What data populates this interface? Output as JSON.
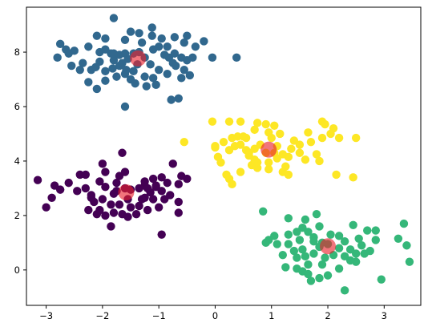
{
  "chart_data": {
    "type": "scatter",
    "title": "",
    "xlabel": "",
    "ylabel": "",
    "xlim": [
      -3.35,
      3.65
    ],
    "ylim": [
      -1.3,
      9.65
    ],
    "xticks": [
      -3,
      -2,
      -1,
      0,
      1,
      2,
      3
    ],
    "yticks": [
      0,
      2,
      4,
      6,
      8
    ],
    "xtick_labels": [
      "−3",
      "−2",
      "−1",
      "0",
      "1",
      "2",
      "3"
    ],
    "ytick_labels": [
      "0",
      "2",
      "4",
      "6",
      "8"
    ],
    "grid": false,
    "legend": "none",
    "series": [
      {
        "color": "#31688e",
        "points": [
          [
            -1.8,
            9.25
          ],
          [
            -1.12,
            8.9
          ],
          [
            -1.5,
            8.75
          ],
          [
            -1.35,
            8.7
          ],
          [
            -1.6,
            8.45
          ],
          [
            -2.1,
            8.6
          ],
          [
            -1.95,
            8.5
          ],
          [
            -2.25,
            8.2
          ],
          [
            -2.5,
            8.05
          ],
          [
            -2.75,
            8.3
          ],
          [
            -2.8,
            7.8
          ],
          [
            -2.65,
            8.1
          ],
          [
            -2.55,
            7.5
          ],
          [
            -2.35,
            7.6
          ],
          [
            -2.2,
            7.35
          ],
          [
            -2.05,
            7.65
          ],
          [
            -1.95,
            7.3
          ],
          [
            -2.05,
            8.0
          ],
          [
            -1.85,
            7.95
          ],
          [
            -1.8,
            7.7
          ],
          [
            -1.7,
            7.5
          ],
          [
            -1.6,
            7.2
          ],
          [
            -1.45,
            7.3
          ],
          [
            -1.5,
            7.0
          ],
          [
            -1.42,
            6.85
          ],
          [
            -1.25,
            7.1
          ],
          [
            -1.1,
            7.05
          ],
          [
            -1.05,
            6.8
          ],
          [
            -1.22,
            6.75
          ],
          [
            -1.38,
            7.55
          ],
          [
            -1.25,
            7.8
          ],
          [
            -1.15,
            7.55
          ],
          [
            -1.0,
            7.35
          ],
          [
            -0.85,
            7.2
          ],
          [
            -0.7,
            7.5
          ],
          [
            -0.55,
            7.35
          ],
          [
            -0.45,
            7.15
          ],
          [
            -0.6,
            7.8
          ],
          [
            -0.75,
            7.6
          ],
          [
            -0.9,
            7.9
          ],
          [
            -0.85,
            8.2
          ],
          [
            -0.95,
            8.5
          ],
          [
            -0.72,
            8.55
          ],
          [
            -0.55,
            8.35
          ],
          [
            -0.35,
            8.2
          ],
          [
            -0.2,
            8.4
          ],
          [
            -0.05,
            7.8
          ],
          [
            0.38,
            7.8
          ],
          [
            -0.4,
            7.8
          ],
          [
            -0.6,
            7.05
          ],
          [
            -1.6,
            7.95
          ],
          [
            -1.45,
            7.95
          ],
          [
            -1.3,
            8.35
          ],
          [
            -1.1,
            8.1
          ],
          [
            -1.0,
            8.2
          ],
          [
            -2.4,
            7.35
          ],
          [
            -2.25,
            6.9
          ],
          [
            -2.1,
            6.65
          ],
          [
            -1.95,
            6.95
          ],
          [
            -1.75,
            7.1
          ],
          [
            -1.7,
            7.9
          ],
          [
            -1.55,
            7.75
          ],
          [
            -1.95,
            8.1
          ],
          [
            -2.6,
            7.95
          ],
          [
            -0.72,
            7.95
          ],
          [
            -1.12,
            8.6
          ],
          [
            -0.65,
            6.3
          ],
          [
            -0.78,
            6.25
          ],
          [
            -1.6,
            6.0
          ],
          [
            -2.12,
            7.45
          ],
          [
            -1.82,
            7.4
          ],
          [
            -1.58,
            7.35
          ],
          [
            -0.5,
            7.7
          ],
          [
            -0.82,
            7.8
          ],
          [
            -1.35,
            8.0
          ],
          [
            -1.8,
            7.95
          ],
          [
            -0.5,
            8.6
          ],
          [
            -1.65,
            7.6
          ]
        ]
      },
      {
        "color": "#fde725",
        "points": [
          [
            -0.05,
            5.45
          ],
          [
            0.25,
            5.45
          ],
          [
            0.45,
            5.45
          ],
          [
            0.75,
            5.4
          ],
          [
            0.9,
            5.35
          ],
          [
            1.05,
            5.3
          ],
          [
            1.9,
            5.45
          ],
          [
            2.1,
            5.2
          ],
          [
            2.05,
            5.0
          ],
          [
            1.95,
            5.35
          ],
          [
            1.65,
            5.05
          ],
          [
            1.7,
            4.7
          ],
          [
            1.9,
            4.85
          ],
          [
            2.2,
            4.85
          ],
          [
            2.5,
            4.85
          ],
          [
            1.5,
            4.6
          ],
          [
            1.35,
            4.45
          ],
          [
            1.2,
            4.25
          ],
          [
            1.3,
            4.15
          ],
          [
            1.5,
            4.3
          ],
          [
            1.6,
            4.05
          ],
          [
            1.8,
            4.25
          ],
          [
            1.85,
            4.0
          ],
          [
            2.15,
            3.5
          ],
          [
            2.45,
            3.4
          ],
          [
            1.25,
            3.8
          ],
          [
            1.2,
            3.6
          ],
          [
            1.3,
            3.5
          ],
          [
            0.95,
            3.7
          ],
          [
            0.75,
            3.75
          ],
          [
            0.65,
            3.85
          ],
          [
            0.45,
            3.6
          ],
          [
            0.3,
            3.15
          ],
          [
            0.25,
            3.35
          ],
          [
            0.2,
            3.5
          ],
          [
            0.1,
            3.95
          ],
          [
            0.05,
            4.15
          ],
          [
            0.0,
            4.5
          ],
          [
            0.15,
            4.7
          ],
          [
            0.3,
            4.85
          ],
          [
            0.4,
            4.9
          ],
          [
            0.55,
            4.85
          ],
          [
            0.45,
            4.6
          ],
          [
            0.55,
            4.4
          ],
          [
            0.6,
            4.2
          ],
          [
            0.7,
            4.45
          ],
          [
            0.8,
            4.6
          ],
          [
            1.0,
            4.85
          ],
          [
            1.15,
            5.0
          ],
          [
            0.95,
            5.05
          ],
          [
            0.7,
            5.15
          ],
          [
            0.5,
            4.9
          ],
          [
            0.35,
            4.55
          ],
          [
            0.25,
            4.4
          ],
          [
            0.75,
            3.95
          ],
          [
            0.95,
            3.95
          ],
          [
            1.05,
            4.3
          ],
          [
            1.1,
            4.1
          ],
          [
            0.9,
            4.3
          ],
          [
            1.1,
            4.55
          ],
          [
            1.4,
            4.75
          ],
          [
            -0.55,
            4.7
          ],
          [
            0.0,
            4.55
          ],
          [
            0.6,
            4.3
          ],
          [
            0.7,
            4.05
          ]
        ]
      },
      {
        "color": "#440154",
        "points": [
          [
            -1.65,
            4.3
          ],
          [
            -2.0,
            3.9
          ],
          [
            -1.95,
            3.6
          ],
          [
            -1.7,
            3.45
          ],
          [
            -1.75,
            3.2
          ],
          [
            -1.6,
            3.6
          ],
          [
            -2.4,
            3.5
          ],
          [
            -2.6,
            3.2
          ],
          [
            -2.85,
            3.1
          ],
          [
            -2.75,
            2.95
          ],
          [
            -3.15,
            3.3
          ],
          [
            -2.9,
            2.65
          ],
          [
            -3.0,
            2.3
          ],
          [
            -2.3,
            3.0
          ],
          [
            -2.2,
            2.75
          ],
          [
            -2.15,
            2.5
          ],
          [
            -2.0,
            2.6
          ],
          [
            -1.85,
            2.4
          ],
          [
            -2.05,
            2.2
          ],
          [
            -2.1,
            2.05
          ],
          [
            -1.95,
            2.0
          ],
          [
            -1.8,
            2.1
          ],
          [
            -1.65,
            2.05
          ],
          [
            -1.7,
            2.4
          ],
          [
            -1.55,
            2.6
          ],
          [
            -1.5,
            2.3
          ],
          [
            -1.4,
            2.05
          ],
          [
            -1.35,
            2.35
          ],
          [
            -1.25,
            2.65
          ],
          [
            -1.15,
            2.85
          ],
          [
            -1.05,
            3.05
          ],
          [
            -0.95,
            2.9
          ],
          [
            -0.8,
            2.75
          ],
          [
            -0.65,
            2.5
          ],
          [
            -0.9,
            2.6
          ],
          [
            -1.0,
            2.3
          ],
          [
            -1.2,
            2.2
          ],
          [
            -1.25,
            3.1
          ],
          [
            -1.35,
            3.0
          ],
          [
            -1.5,
            2.95
          ],
          [
            -1.6,
            3.0
          ],
          [
            -1.8,
            2.8
          ],
          [
            -1.95,
            3.05
          ],
          [
            -1.55,
            1.95
          ],
          [
            -1.85,
            1.6
          ],
          [
            -0.95,
            1.3
          ],
          [
            -0.65,
            2.1
          ],
          [
            -0.5,
            3.35
          ],
          [
            -0.6,
            3.45
          ],
          [
            -0.75,
            3.9
          ],
          [
            -0.65,
            3.15
          ],
          [
            -1.1,
            3.35
          ],
          [
            -0.95,
            3.4
          ],
          [
            -1.2,
            3.0
          ],
          [
            -2.2,
            2.65
          ],
          [
            -1.3,
            2.6
          ],
          [
            -1.1,
            2.6
          ],
          [
            -2.3,
            3.5
          ],
          [
            -2.05,
            3.25
          ],
          [
            -1.25,
            3.25
          ],
          [
            -0.85,
            3.2
          ],
          [
            -1.05,
            3.1
          ],
          [
            -1.75,
            2.9
          ],
          [
            -2.45,
            2.9
          ],
          [
            -2.25,
            2.2
          ]
        ]
      },
      {
        "color": "#35b779",
        "points": [
          [
            0.85,
            2.15
          ],
          [
            1.3,
            1.9
          ],
          [
            1.55,
            1.55
          ],
          [
            1.6,
            1.85
          ],
          [
            1.8,
            2.05
          ],
          [
            1.75,
            1.2
          ],
          [
            1.9,
            1.0
          ],
          [
            2.05,
            1.3
          ],
          [
            2.2,
            1.25
          ],
          [
            2.3,
            1.05
          ],
          [
            2.45,
            1.65
          ],
          [
            2.7,
            1.45
          ],
          [
            2.85,
            1.45
          ],
          [
            2.85,
            1.1
          ],
          [
            2.6,
            0.9
          ],
          [
            2.4,
            0.75
          ],
          [
            2.5,
            0.6
          ],
          [
            2.65,
            0.6
          ],
          [
            2.3,
            0.5
          ],
          [
            2.1,
            0.55
          ],
          [
            1.95,
            0.45
          ],
          [
            1.75,
            0.6
          ],
          [
            1.6,
            0.5
          ],
          [
            1.55,
            0.75
          ],
          [
            1.4,
            0.7
          ],
          [
            1.2,
            0.55
          ],
          [
            1.3,
            0.95
          ],
          [
            1.1,
            0.95
          ],
          [
            0.95,
            1.1
          ],
          [
            1.05,
            1.25
          ],
          [
            0.9,
            1.0
          ],
          [
            1.25,
            0.1
          ],
          [
            1.45,
            0.05
          ],
          [
            1.55,
            -0.05
          ],
          [
            1.65,
            -0.15
          ],
          [
            1.7,
            -0.4
          ],
          [
            1.85,
            -0.3
          ],
          [
            2.0,
            -0.2
          ],
          [
            2.2,
            0.05
          ],
          [
            2.3,
            -0.75
          ],
          [
            2.5,
            0.3
          ],
          [
            2.95,
            -0.35
          ],
          [
            3.25,
            1.15
          ],
          [
            3.35,
            1.7
          ],
          [
            3.4,
            0.9
          ],
          [
            3.45,
            0.3
          ],
          [
            1.65,
            0.2
          ],
          [
            1.9,
            0.2
          ],
          [
            2.4,
            0.35
          ],
          [
            1.45,
            0.45
          ],
          [
            2.2,
            0.8
          ],
          [
            1.5,
            1.1
          ],
          [
            1.85,
            0.85
          ],
          [
            2.0,
            0.95
          ],
          [
            1.65,
            1.4
          ],
          [
            1.3,
            1.3
          ],
          [
            2.55,
            1.15
          ],
          [
            1.45,
            1.4
          ],
          [
            1.75,
            1.05
          ],
          [
            2.75,
            0.7
          ],
          [
            1.85,
            1.6
          ]
        ]
      }
    ],
    "centers": {
      "color": "#e8202b",
      "points": [
        [
          -1.37,
          7.77
        ],
        [
          0.95,
          4.42
        ],
        [
          -1.58,
          2.85
        ],
        [
          2.0,
          0.87
        ]
      ]
    }
  }
}
